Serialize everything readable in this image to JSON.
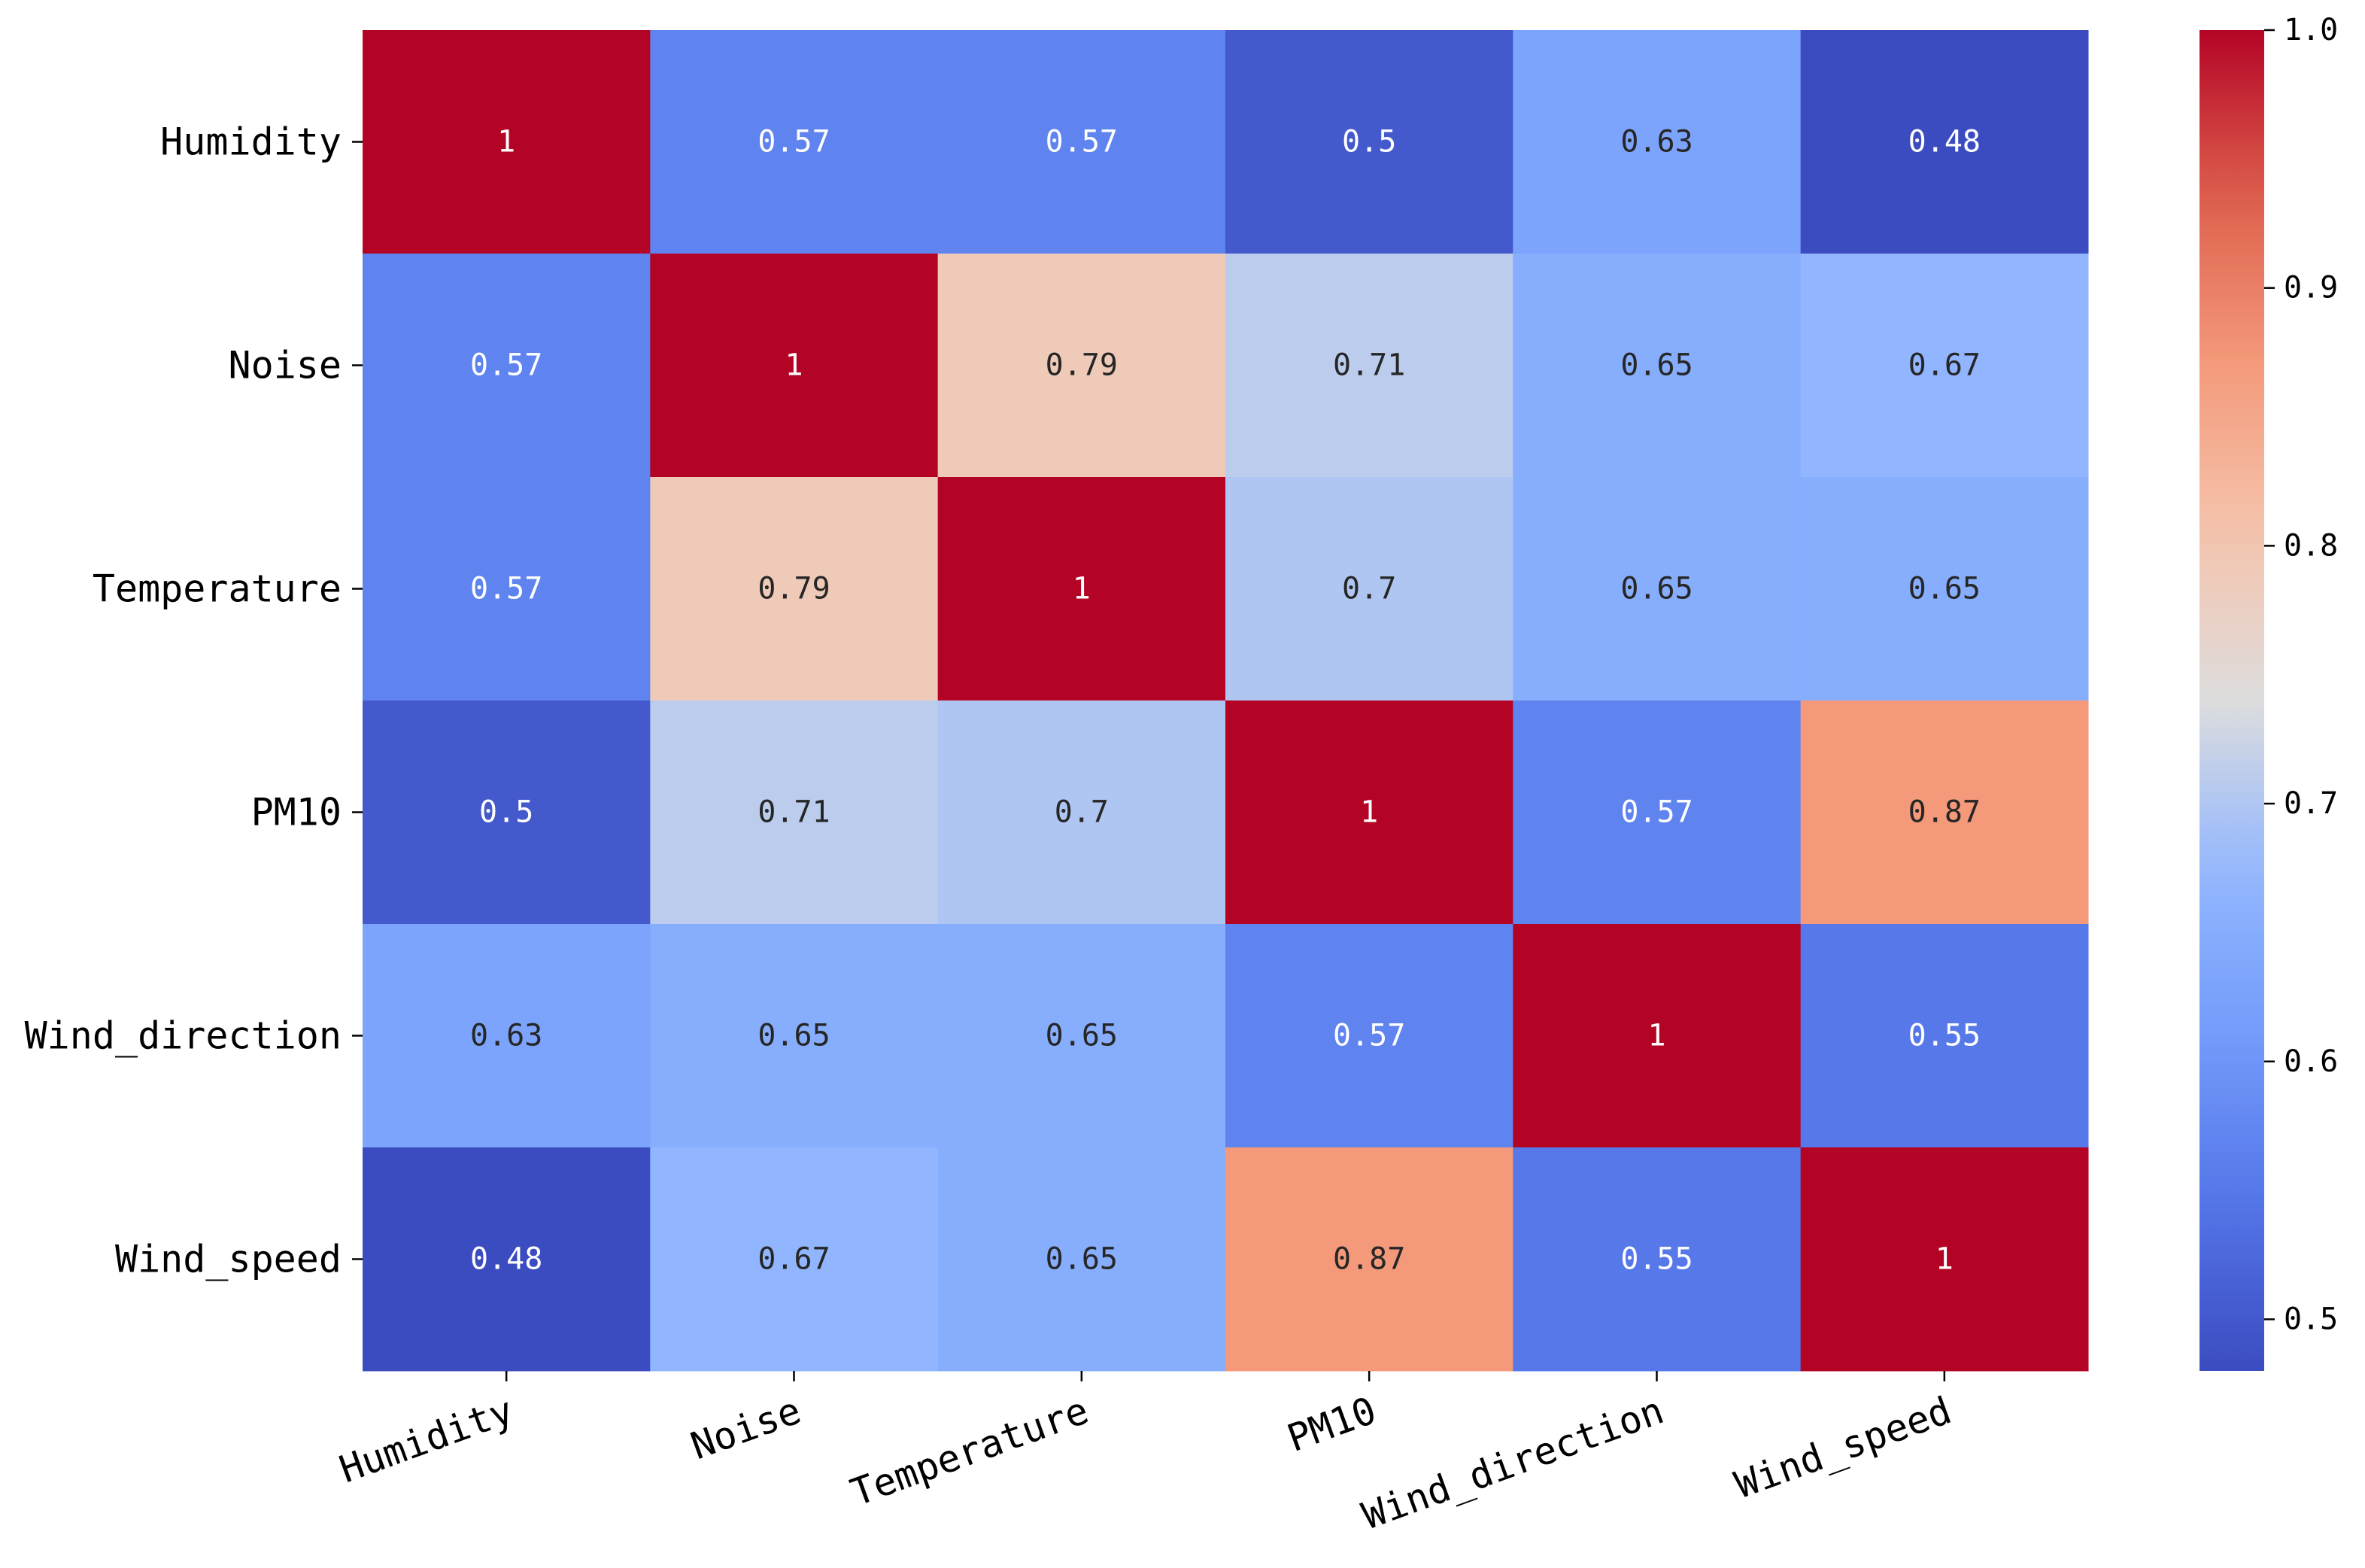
{
  "chart_data": {
    "type": "heatmap",
    "title": "",
    "xlabel": "",
    "ylabel": "",
    "row_labels": [
      "Humidity",
      "Noise",
      "Temperature",
      "PM10",
      "Wind_direction",
      "Wind_speed"
    ],
    "col_labels": [
      "Humidity",
      "Noise",
      "Temperature",
      "PM10",
      "Wind_direction",
      "Wind_speed"
    ],
    "values": [
      [
        1,
        0.57,
        0.57,
        0.5,
        0.63,
        0.48
      ],
      [
        0.57,
        1,
        0.79,
        0.71,
        0.65,
        0.67
      ],
      [
        0.57,
        0.79,
        1,
        0.7,
        0.65,
        0.65
      ],
      [
        0.5,
        0.71,
        0.7,
        1,
        0.57,
        0.87
      ],
      [
        0.63,
        0.65,
        0.65,
        0.57,
        1,
        0.55
      ],
      [
        0.48,
        0.67,
        0.65,
        0.87,
        0.55,
        1
      ]
    ],
    "value_labels": [
      [
        "1",
        "0.57",
        "0.57",
        "0.5",
        "0.63",
        "0.48"
      ],
      [
        "0.57",
        "1",
        "0.79",
        "0.71",
        "0.65",
        "0.67"
      ],
      [
        "0.57",
        "0.79",
        "1",
        "0.7",
        "0.65",
        "0.65"
      ],
      [
        "0.5",
        "0.71",
        "0.7",
        "1",
        "0.57",
        "0.87"
      ],
      [
        "0.63",
        "0.65",
        "0.65",
        "0.57",
        "1",
        "0.55"
      ],
      [
        "0.48",
        "0.67",
        "0.65",
        "0.87",
        "0.55",
        "1"
      ]
    ],
    "colormap": "coolwarm",
    "colorbar": {
      "vmin": 0.48,
      "vmax": 1.0,
      "ticks": [
        0.5,
        0.6,
        0.7,
        0.8,
        0.9,
        1.0
      ],
      "tick_labels": [
        "0.5",
        "0.6",
        "0.7",
        "0.8",
        "0.9",
        "1.0"
      ]
    },
    "x_tick_rotation_deg": 20,
    "annotated": true
  }
}
